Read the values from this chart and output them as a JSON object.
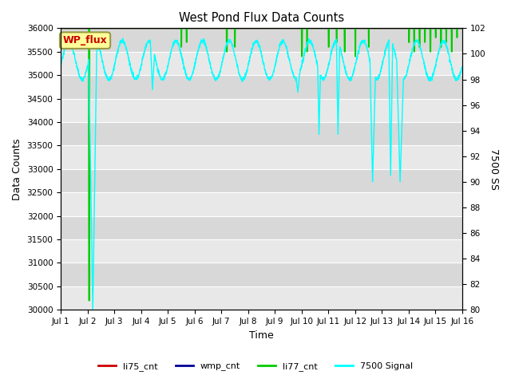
{
  "title": "West Pond Flux Data Counts",
  "xlabel": "Time",
  "ylabel_left": "Data Counts",
  "ylabel_right": "7500 SS",
  "ylim_left": [
    30000,
    36000
  ],
  "ylim_right": [
    80,
    102
  ],
  "xtick_labels": [
    "Jul 1",
    "Jul 2",
    "Jul 3",
    "Jul 4",
    "Jul 5",
    "Jul 6",
    "Jul 7",
    "Jul 8",
    "Jul 9",
    "Jul 10",
    "Jul 11",
    "Jul 12",
    "Jul 13",
    "Jul 14",
    "Jul 15",
    "Jul 16"
  ],
  "yticks_left": [
    30000,
    30500,
    31000,
    31500,
    32000,
    32500,
    33000,
    33500,
    34000,
    34500,
    35000,
    35500,
    36000
  ],
  "yticks_right": [
    80,
    82,
    84,
    86,
    88,
    90,
    92,
    94,
    96,
    98,
    100,
    102
  ],
  "bg_color": "#e8e8e8",
  "bg_color2": "#d8d8d8",
  "grid_color": "white",
  "annotation_box": {
    "text": "WP_flux",
    "fontsize": 9,
    "color": "#cc0000",
    "boxcolor": "#ffff99",
    "edgecolor": "#999944"
  }
}
